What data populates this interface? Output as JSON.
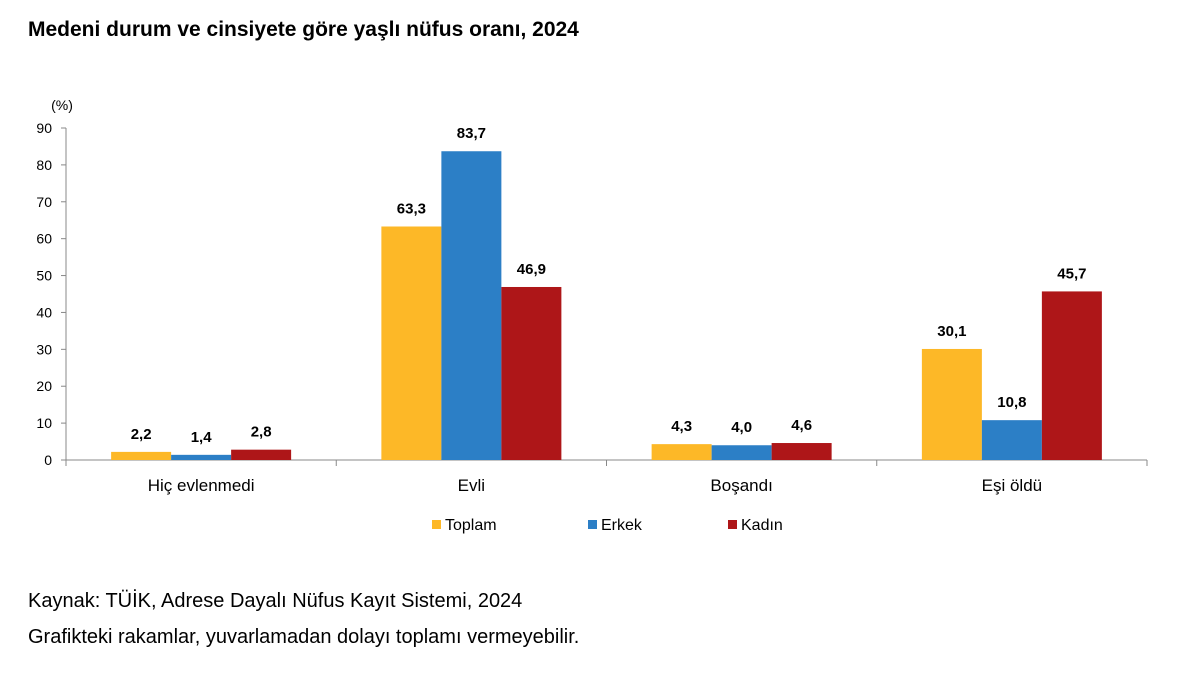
{
  "title": "Medeni durum ve cinsiyete göre yaşlı nüfus oranı, 2024",
  "source": "Kaynak: TÜİK, Adrese Dayalı Nüfus Kayıt Sistemi, 2024",
  "note": "Grafikteki rakamlar, yuvarlamadan dolayı toplamı vermeyebilir.",
  "chart_data": {
    "type": "bar",
    "title": "Medeni durum ve cinsiyete göre yaşlı nüfus oranı, 2024",
    "ylabel": "(%)",
    "xlabel": "",
    "ylim": [
      0,
      90
    ],
    "yticks": [
      0,
      10,
      20,
      30,
      40,
      50,
      60,
      70,
      80,
      90
    ],
    "grid": false,
    "legend": "bottom",
    "categories": [
      "Hiç evlenmedi",
      "Evli",
      "Boşandı",
      "Eşi öldü"
    ],
    "series": [
      {
        "name": "Toplam",
        "color": "#FDB827",
        "values": [
          2.2,
          63.3,
          4.3,
          30.1
        ],
        "labels": [
          "2,2",
          "63,3",
          "4,3",
          "30,1"
        ]
      },
      {
        "name": "Erkek",
        "color": "#2C7FC6",
        "values": [
          1.4,
          83.7,
          4.0,
          10.8
        ],
        "labels": [
          "1,4",
          "83,7",
          "4,0",
          "10,8"
        ]
      },
      {
        "name": "Kadın",
        "color": "#AE1618",
        "values": [
          2.8,
          46.9,
          4.6,
          45.7
        ],
        "labels": [
          "2,8",
          "46,9",
          "4,6",
          "45,7"
        ]
      }
    ]
  }
}
